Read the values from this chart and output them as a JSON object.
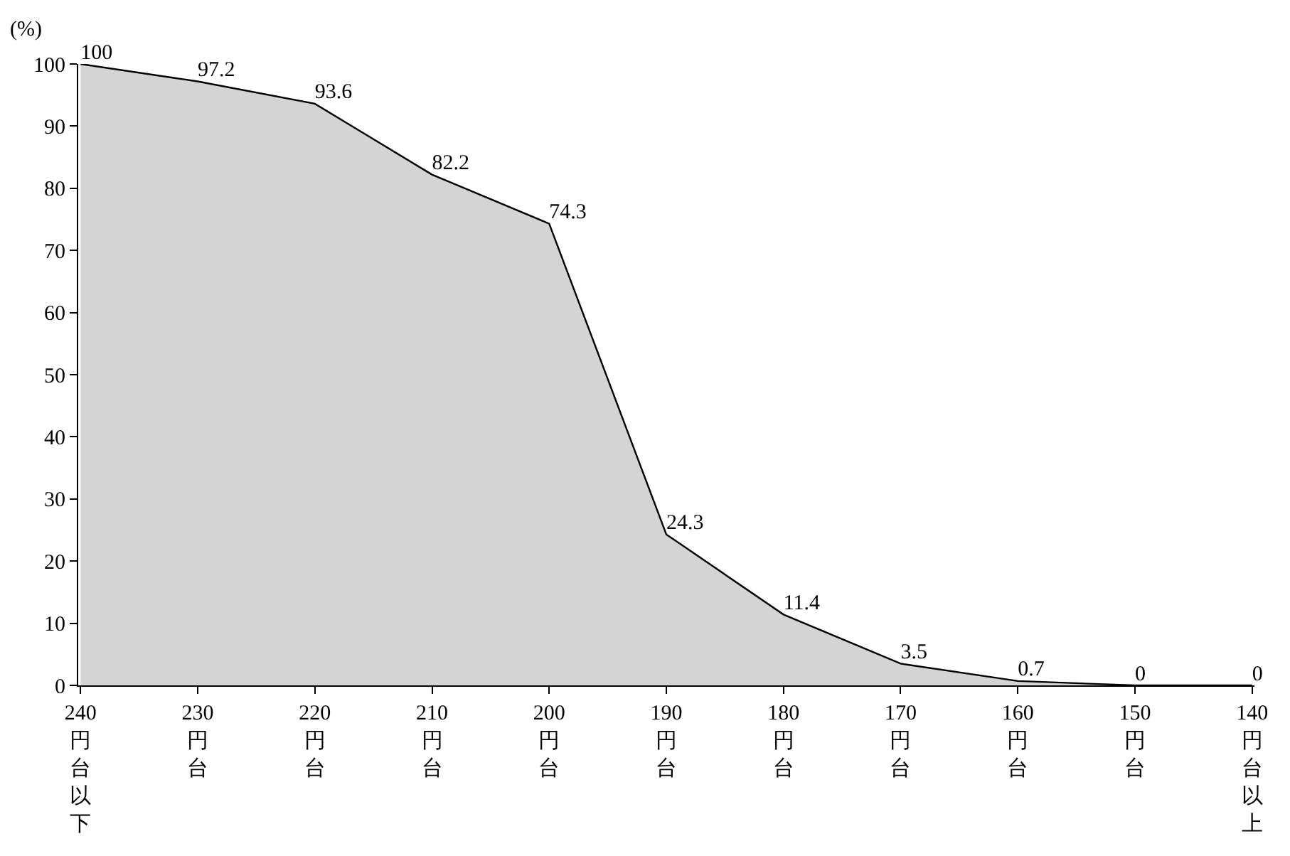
{
  "chart_data": {
    "type": "area",
    "ylabel": "(%)",
    "categories": [
      "240円台以下",
      "230円台",
      "220円台",
      "210円台",
      "200円台",
      "190円台",
      "180円台",
      "170円台",
      "160円台",
      "150円台",
      "140円台以上"
    ],
    "series": [
      {
        "color": "#d4d4d4",
        "values": [
          100,
          97.2,
          93.6,
          82.2,
          74.3,
          24.3,
          11.4,
          3.5,
          0.7,
          0,
          0
        ]
      }
    ],
    "ylim": [
      0,
      100
    ],
    "yticks": [
      0,
      10,
      20,
      30,
      40,
      50,
      60,
      70,
      80,
      90,
      100
    ],
    "data_labels": true
  }
}
